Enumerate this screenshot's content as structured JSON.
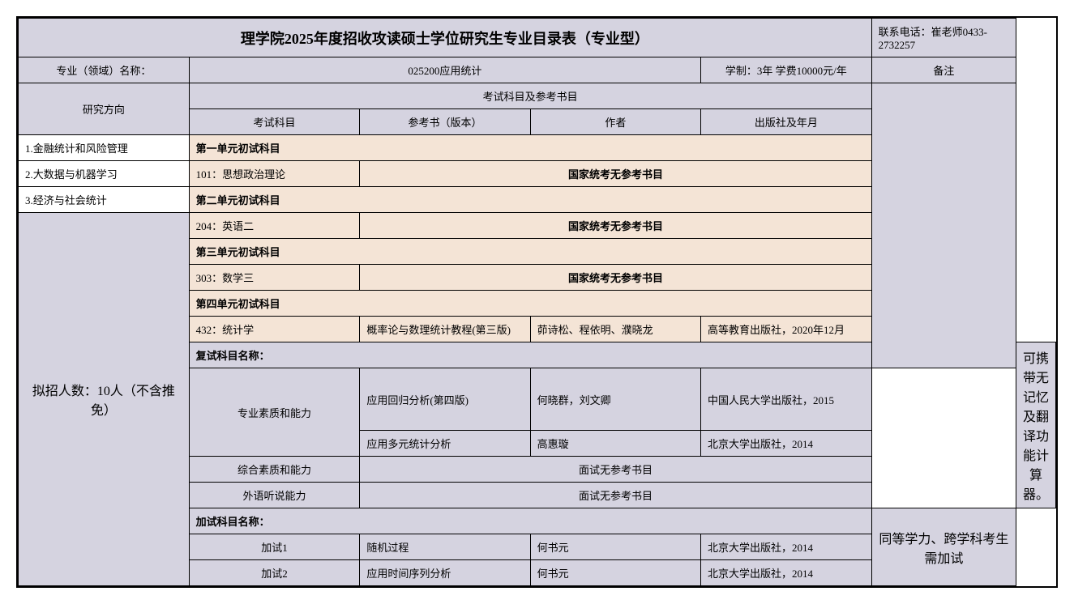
{
  "title": "理学院2025年度招收攻读硕士学位研究生专业目录表（专业型）",
  "contact": "联系电话：崔老师0433-2732257",
  "labels": {
    "major_name": "专业（领域）名称：",
    "research_direction": "研究方向",
    "exam_subjects_refs": "考试科目及参考书目",
    "exam_subject": "考试科目",
    "ref_book": "参考书（版本）",
    "author": "作者",
    "publisher": "出版社及年月",
    "remarks": "备注"
  },
  "major_info": {
    "code_name": "025200应用统计",
    "duration_fee": "学制：3年 学费10000元/年"
  },
  "directions": {
    "d1": "1.金融统计和风险管理",
    "d2": "2.大数据与机器学习",
    "d3": "3.经济与社会统计"
  },
  "enrollment": "拟招人数：10人（不含推免）",
  "units": {
    "unit1": "第一单元初试科目",
    "unit1_subject": "101：思想政治理论",
    "unit1_ref": "国家统考无参考书目",
    "unit2": "第二单元初试科目",
    "unit2_subject": "204：英语二",
    "unit2_ref": "国家统考无参考书目",
    "unit3": "第三单元初试科目",
    "unit3_subject": "303：数学三",
    "unit3_ref": "国家统考无参考书目",
    "unit4": "第四单元初试科目",
    "unit4_subject": "432：统计学",
    "unit4_book": "概率论与数理统计教程(第三版)",
    "unit4_author": "茆诗松、程依明、濮晓龙",
    "unit4_publisher": "高等教育出版社，2020年12月"
  },
  "retest": {
    "title": "复试科目名称：",
    "row1_subject": "专业素质和能力",
    "row1_book1": "应用回归分析(第四版)",
    "row1_author1": "何晓群，刘文卿",
    "row1_pub1": "中国人民大学出版社，2015",
    "row1_book2": "应用多元统计分析",
    "row1_author2": "高惠璇",
    "row1_pub2": "北京大学出版社，2014",
    "row2_subject": "综合素质和能力",
    "row2_ref": "面试无参考书目",
    "row3_subject": "外语听说能力",
    "row3_ref": "面试无参考书目"
  },
  "additional": {
    "title": "加试科目名称：",
    "row1_subject": "加试1",
    "row1_book": "随机过程",
    "row1_author": "何书元",
    "row1_pub": "北京大学出版社，2014",
    "row2_subject": "加试2",
    "row2_book": "应用时间序列分析",
    "row2_author": "何书元",
    "row2_pub": "北京大学出版社，2014"
  },
  "remarks": {
    "retest_note": "可携带无记忆及翻译功能计算器。",
    "additional_note": "同等学力、跨学科考生需加试"
  }
}
